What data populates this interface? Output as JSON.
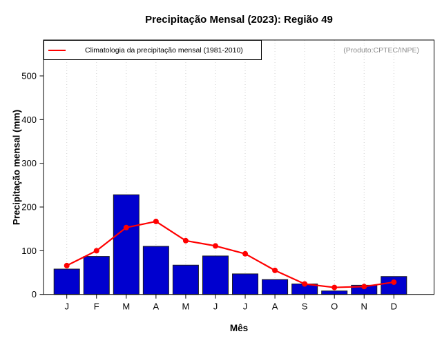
{
  "title": "Precipitação Mensal (2023): Região 49",
  "legend": {
    "label": "Climatologia da precipitação mensal (1981-2010)"
  },
  "annotation": "(Produto:CPTEC/INPE)",
  "chart_data": {
    "type": "bar",
    "title": "Precipitação Mensal (2023): Região 49",
    "xlabel": "Mês",
    "ylabel": "Precipitação mensal (mm)",
    "categories": [
      "J",
      "F",
      "M",
      "A",
      "M",
      "J",
      "J",
      "A",
      "S",
      "O",
      "N",
      "D"
    ],
    "series": [
      {
        "name": "Precipitação mensal 2023",
        "type": "bar",
        "color": "#0000CF",
        "values": [
          58,
          87,
          228,
          110,
          67,
          88,
          47,
          34,
          24,
          8,
          21,
          41
        ]
      },
      {
        "name": "Climatologia da precipitação mensal (1981-2010)",
        "type": "line",
        "color": "#ff0000",
        "values": [
          66,
          100,
          153,
          167,
          123,
          111,
          93,
          55,
          24,
          16,
          18,
          28
        ]
      }
    ],
    "yticks": [
      0,
      100,
      200,
      300,
      400,
      500
    ],
    "ylim": [
      0,
      582
    ],
    "grid": "vertical-dotted",
    "grid_color": "#cfcfcf",
    "axis_color": "#000000",
    "bar_border_color": "#1a1a1a",
    "legend_position": "topleft"
  }
}
